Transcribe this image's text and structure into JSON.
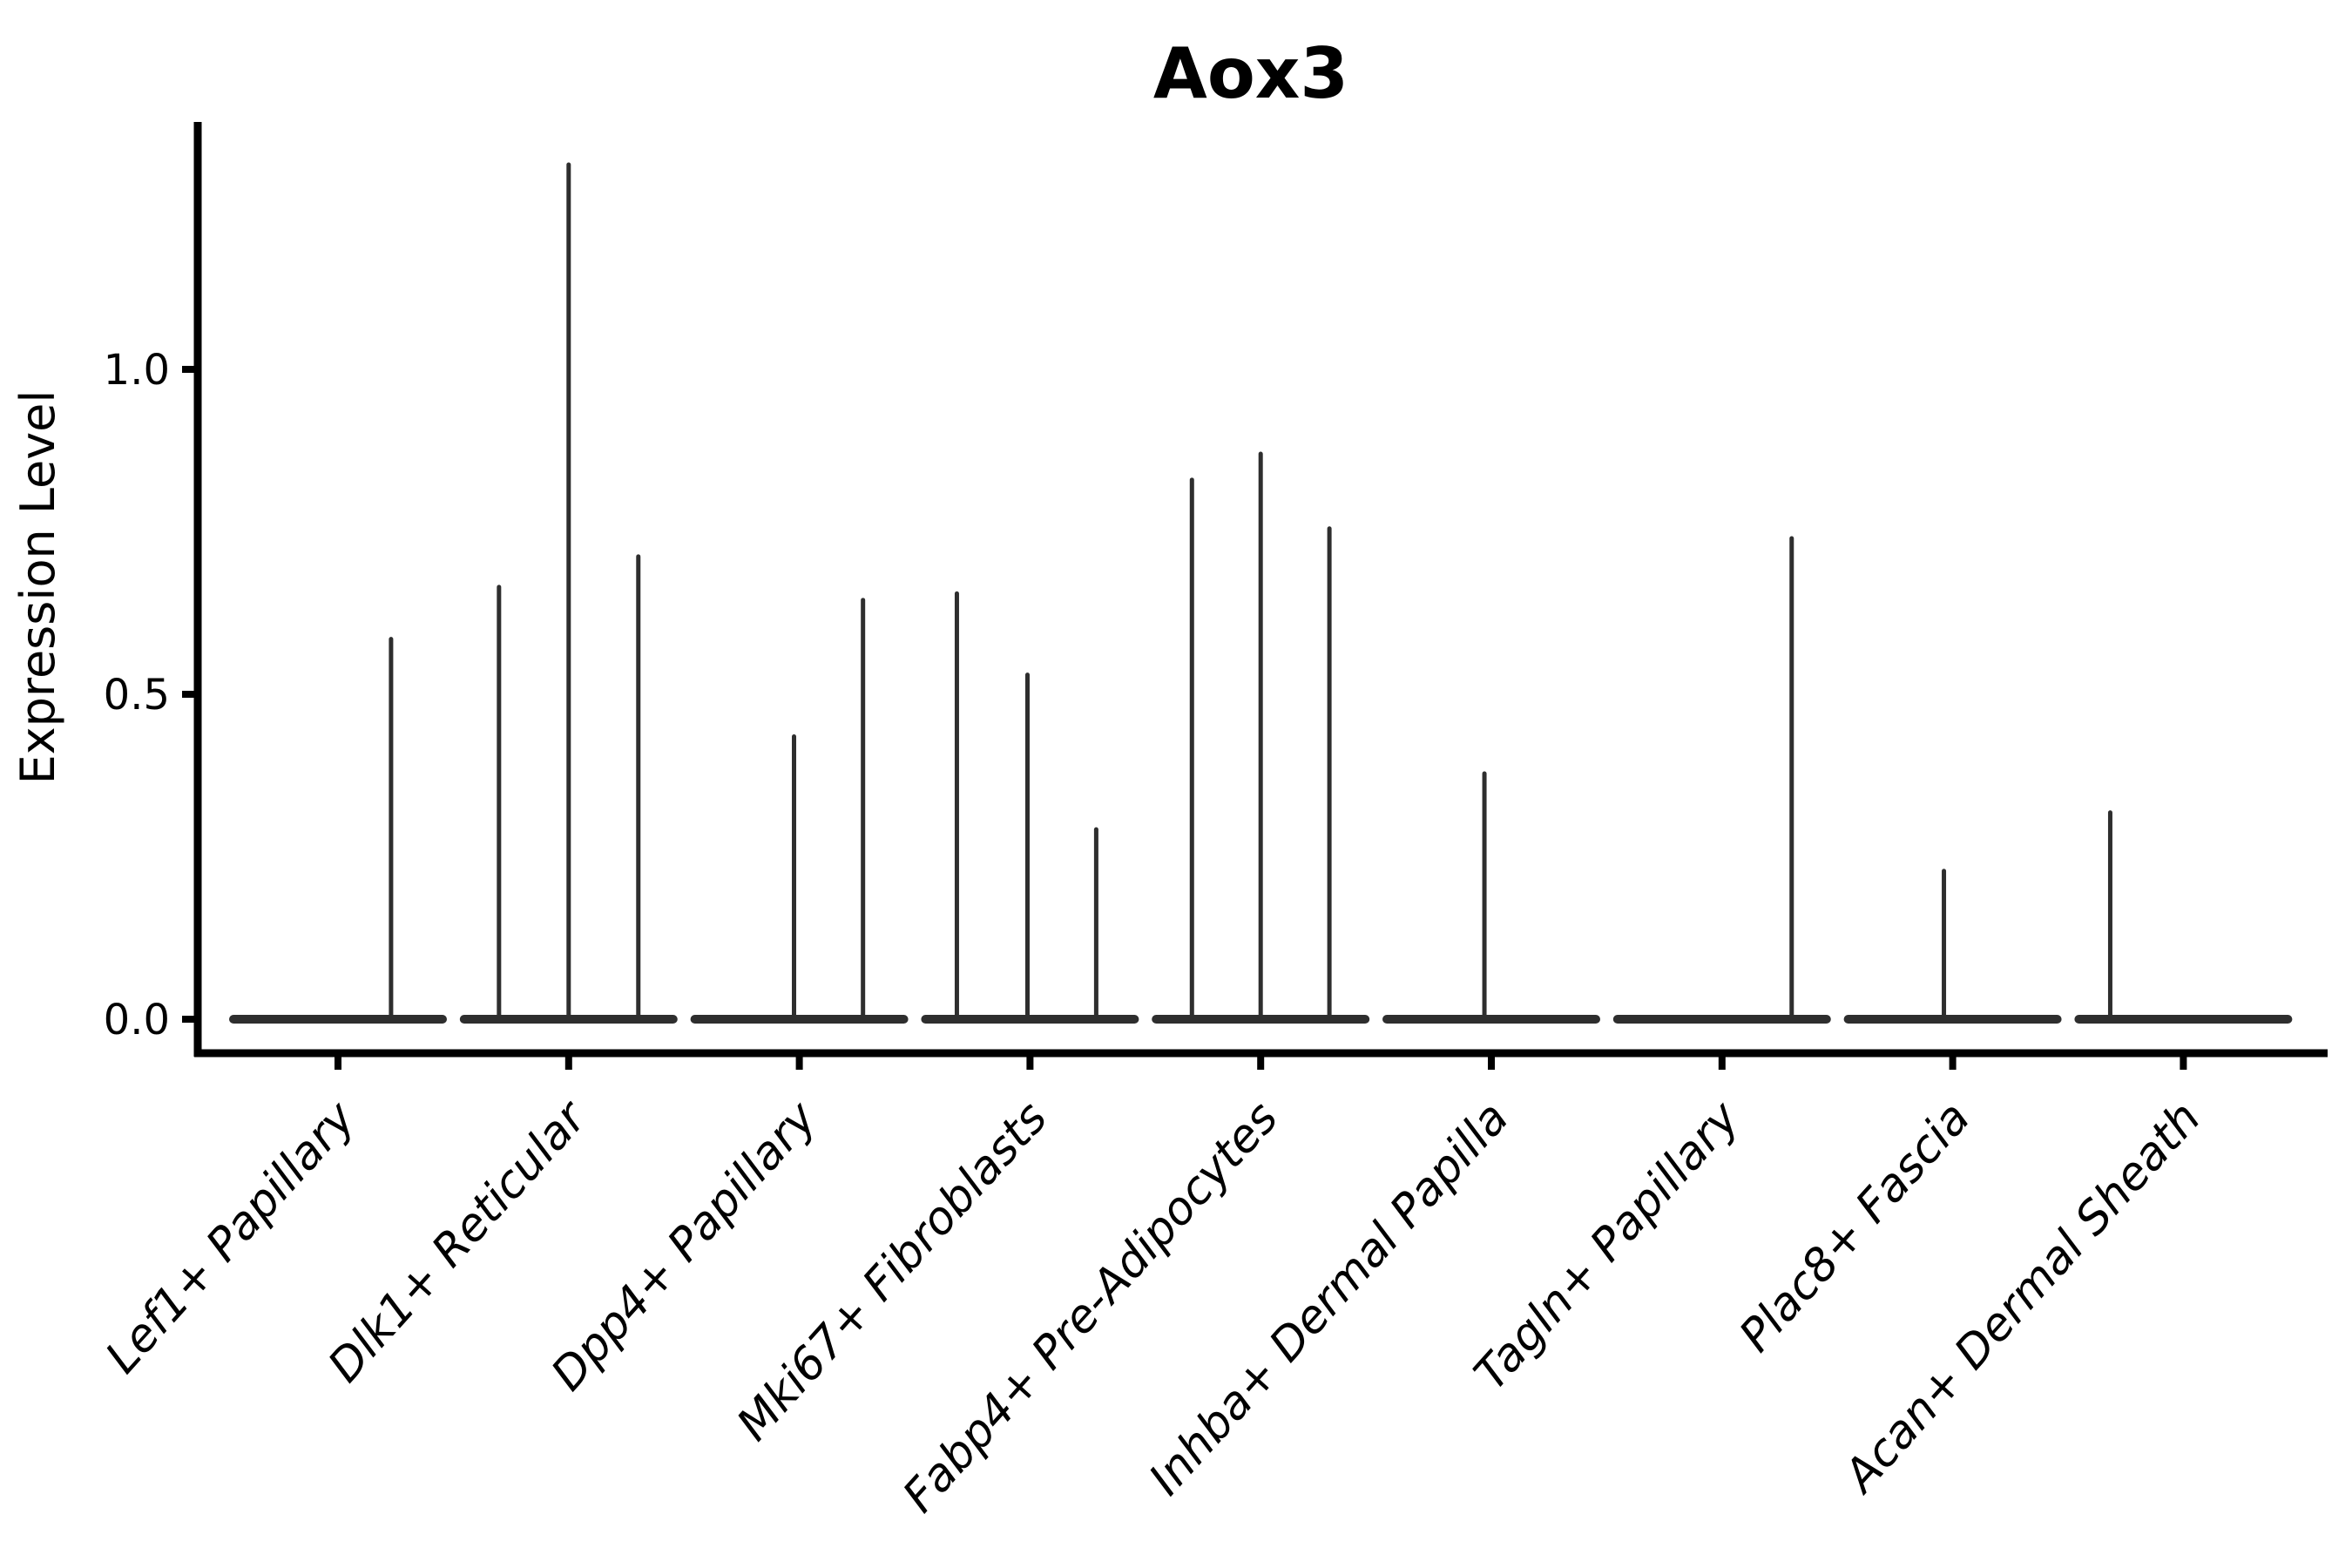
{
  "chart_data": {
    "type": "violin",
    "title": "Aox3",
    "ylabel": "Expression Level",
    "xlabel": "",
    "legend": null,
    "grid": false,
    "background": "#ffffff",
    "ylim": [
      -0.052,
      1.381
    ],
    "yticks": [
      0.0,
      0.5,
      1.0
    ],
    "ytick_labels": [
      "0.0",
      "0.5",
      "1.0"
    ],
    "x_label_rotation_deg": 48,
    "categories": [
      "Lef1+ Papillary",
      "Dlk1+ Reticular",
      "Dpp4+ Papillary",
      "Mki67+ Fibroblasts",
      "Fabp4+ Pre-Adipocytes",
      "Inhba+ Dermal Papilla",
      "Tagln+ Papillary",
      "Plac8+ Fascia",
      "Acan+ Dermal Sheath"
    ],
    "series": [
      {
        "name": "Lef1+ Papillary",
        "violins": [
          {
            "offset_frac": 0.23,
            "max_value": 0.585,
            "bulk_value": 0.0
          }
        ]
      },
      {
        "name": "Dlk1+ Reticular",
        "violins": [
          {
            "offset_frac": -0.302,
            "max_value": 0.665,
            "bulk_value": 0.0
          },
          {
            "offset_frac": 0.0,
            "max_value": 1.315,
            "bulk_value": 0.0
          },
          {
            "offset_frac": 0.302,
            "max_value": 0.712,
            "bulk_value": 0.0
          }
        ]
      },
      {
        "name": "Dpp4+ Papillary",
        "violins": [
          {
            "offset_frac": -0.023,
            "max_value": 0.435,
            "bulk_value": 0.0
          },
          {
            "offset_frac": 0.276,
            "max_value": 0.645,
            "bulk_value": 0.0
          }
        ]
      },
      {
        "name": "Mki67+ Fibroblasts",
        "violins": [
          {
            "offset_frac": -0.317,
            "max_value": 0.655,
            "bulk_value": 0.0
          },
          {
            "offset_frac": -0.011,
            "max_value": 0.53,
            "bulk_value": 0.0
          },
          {
            "offset_frac": 0.287,
            "max_value": 0.292,
            "bulk_value": 0.0
          }
        ]
      },
      {
        "name": "Fabp4+ Pre-Adipocytes",
        "violins": [
          {
            "offset_frac": -0.298,
            "max_value": 0.83,
            "bulk_value": 0.0
          },
          {
            "offset_frac": 0.0,
            "max_value": 0.87,
            "bulk_value": 0.0
          },
          {
            "offset_frac": 0.298,
            "max_value": 0.755,
            "bulk_value": 0.0
          }
        ]
      },
      {
        "name": "Inhba+ Dermal Papilla",
        "violins": [
          {
            "offset_frac": -0.03,
            "max_value": 0.378,
            "bulk_value": 0.0
          }
        ]
      },
      {
        "name": "Tagln+ Papillary",
        "violins": [
          {
            "offset_frac": 0.302,
            "max_value": 0.74,
            "bulk_value": 0.0
          }
        ]
      },
      {
        "name": "Plac8+ Fascia",
        "violins": [
          {
            "offset_frac": -0.038,
            "max_value": 0.228,
            "bulk_value": 0.0
          }
        ]
      },
      {
        "name": "Acan+ Dermal Sheath",
        "violins": [
          {
            "offset_frac": -0.317,
            "max_value": 0.318,
            "bulk_value": 0.0
          }
        ]
      }
    ]
  },
  "colors": {
    "violin_line": "#2e2e2e",
    "axis": "#000000",
    "text": "#000000",
    "background": "#ffffff"
  }
}
